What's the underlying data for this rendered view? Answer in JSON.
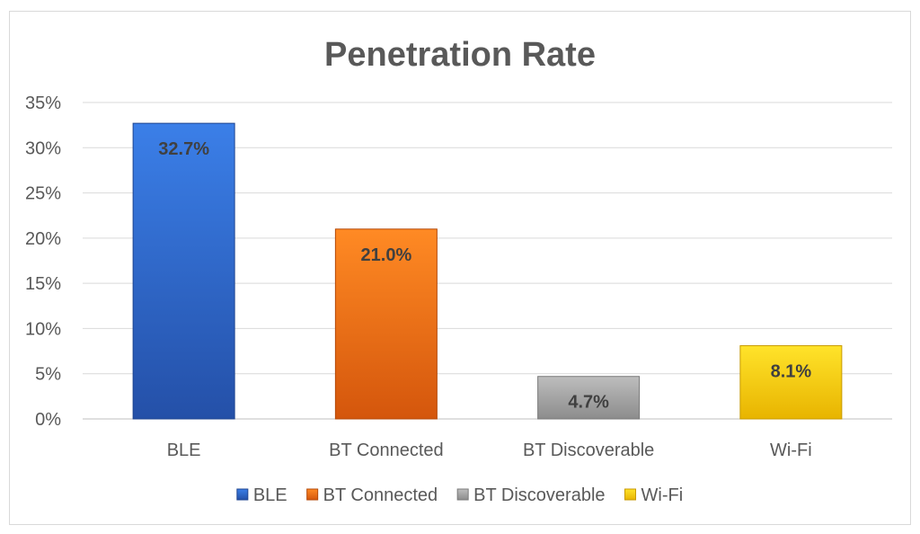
{
  "chart_data": {
    "type": "bar",
    "title": "Penetration Rate",
    "categories": [
      "BLE",
      "BT Connected",
      "BT Discoverable",
      "Wi-Fi"
    ],
    "values": [
      32.7,
      21.0,
      4.7,
      8.1
    ],
    "data_labels": [
      "32.7%",
      "21.0%",
      "4.7%",
      "8.1%"
    ],
    "xlabel": "",
    "ylabel": "",
    "ylim": [
      0,
      35
    ],
    "y_ticks": [
      0,
      5,
      10,
      15,
      20,
      25,
      30,
      35
    ],
    "y_tick_labels": [
      "0%",
      "5%",
      "10%",
      "15%",
      "20%",
      "25%",
      "30%",
      "35%"
    ],
    "grid": true,
    "legend": {
      "position": "bottom",
      "entries": [
        "BLE",
        "BT Connected",
        "BT Discoverable",
        "Wi-Fi"
      ]
    },
    "colors": {
      "BLE": {
        "top": "#3b7fe8",
        "bottom": "#2450a8",
        "edge": "#1f4590"
      },
      "BT Connected": {
        "top": "#ff8a24",
        "bottom": "#d4560c",
        "edge": "#b44a0a"
      },
      "BT Discoverable": {
        "top": "#bdbdbd",
        "bottom": "#8c8c8c",
        "edge": "#7a7a7a"
      },
      "Wi-Fi": {
        "top": "#ffe32a",
        "bottom": "#e8b400",
        "edge": "#c89a00"
      }
    }
  }
}
